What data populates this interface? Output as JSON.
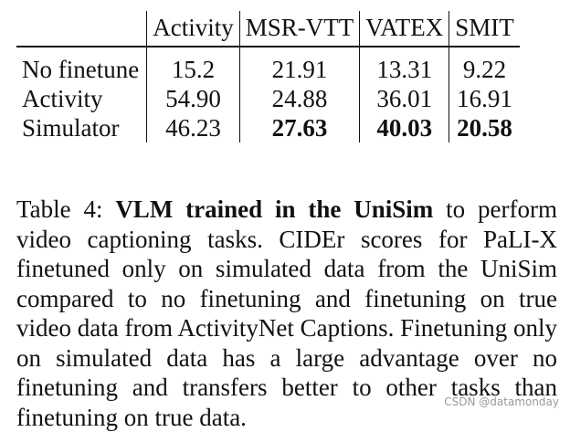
{
  "table": {
    "columns": [
      "Activity",
      "MSR-VTT",
      "VATEX",
      "SMIT"
    ],
    "rows": [
      {
        "label": "No finetune",
        "values": [
          "15.2",
          "21.91",
          "13.31",
          "9.22"
        ]
      },
      {
        "label": "Activity",
        "values": [
          "54.90",
          "24.88",
          "36.01",
          "16.91"
        ]
      },
      {
        "label": "Simulator",
        "values": [
          "46.23",
          "27.63",
          "40.03",
          "20.58"
        ]
      }
    ]
  },
  "caption": {
    "prefix": "Table 4: ",
    "bold": "VLM trained in the UniSim",
    "rest": " to perform video captioning tasks. CIDEr scores for PaLI-X finetuned only on simulated data from the UniSim compared to no finetuning and finetuning on true video data from ActivityNet Captions. Finetuning only on simulated data has a large advantage over no finetuning and transfers better to other tasks than finetuning on true data."
  },
  "watermark": "CSDN @datamonday"
}
